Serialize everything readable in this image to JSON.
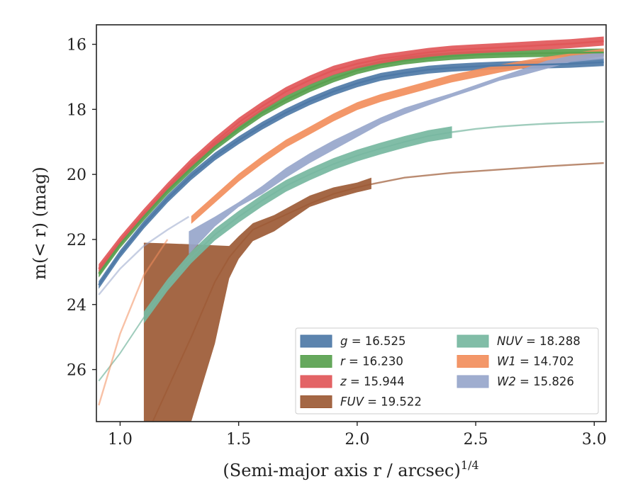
{
  "chart_data": {
    "type": "line",
    "xlabel": "(Semi-major axis r / arcsec)",
    "xlabel_sup": "1/4",
    "ylabel": "m(< r) (mag)",
    "xlim": [
      0.9,
      3.05
    ],
    "ylim": [
      27.6,
      15.4
    ],
    "y_inverted": true,
    "xticks": [
      "1.0",
      "1.5",
      "2.0",
      "2.5",
      "3.0"
    ],
    "xtick_values": [
      1.0,
      1.5,
      2.0,
      2.5,
      3.0
    ],
    "yticks": [
      "16",
      "18",
      "20",
      "22",
      "24",
      "26"
    ],
    "ytick_values": [
      16,
      18,
      20,
      22,
      24,
      26
    ],
    "grid": false,
    "legend_position": "lower right",
    "series": [
      {
        "name": "g = 16.525",
        "legend_prefix": "g",
        "legend_value": "= 16.525",
        "color": "#4e79a7",
        "x": [
          0.91,
          1.0,
          1.1,
          1.2,
          1.3,
          1.4,
          1.5,
          1.6,
          1.7,
          1.8,
          1.9,
          2.0,
          2.1,
          2.2,
          2.3,
          2.4,
          2.5,
          2.6,
          2.7,
          2.8,
          2.9,
          3.04
        ],
        "y": [
          23.4,
          22.45,
          21.55,
          20.75,
          20.05,
          19.45,
          18.95,
          18.5,
          18.1,
          17.75,
          17.45,
          17.2,
          17.0,
          16.88,
          16.78,
          16.72,
          16.68,
          16.65,
          16.63,
          16.62,
          16.6,
          16.55
        ],
        "band": 0.12,
        "faded_after": null
      },
      {
        "name": "r = 16.230",
        "legend_prefix": "r",
        "legend_value": "= 16.230",
        "color": "#59a14f",
        "x": [
          0.91,
          1.0,
          1.1,
          1.2,
          1.3,
          1.4,
          1.5,
          1.6,
          1.7,
          1.8,
          1.9,
          2.0,
          2.1,
          2.2,
          2.3,
          2.4,
          2.5,
          2.6,
          2.7,
          2.8,
          2.9,
          3.04
        ],
        "y": [
          23.05,
          22.15,
          21.3,
          20.5,
          19.8,
          19.15,
          18.6,
          18.1,
          17.7,
          17.35,
          17.05,
          16.8,
          16.62,
          16.5,
          16.42,
          16.36,
          16.32,
          16.3,
          16.28,
          16.27,
          16.26,
          16.25
        ],
        "band": 0.12,
        "faded_after": null
      },
      {
        "name": "z = 15.944",
        "legend_prefix": "z",
        "legend_value": "= 15.944",
        "color": "#e15759",
        "x": [
          0.91,
          1.0,
          1.1,
          1.2,
          1.3,
          1.4,
          1.5,
          1.6,
          1.7,
          1.8,
          1.9,
          2.0,
          2.1,
          2.2,
          2.3,
          2.4,
          2.5,
          2.6,
          2.7,
          2.8,
          2.9,
          3.04
        ],
        "y": [
          22.9,
          22.05,
          21.2,
          20.4,
          19.65,
          19.0,
          18.4,
          17.9,
          17.45,
          17.1,
          16.8,
          16.6,
          16.45,
          16.35,
          16.25,
          16.18,
          16.14,
          16.1,
          16.06,
          16.02,
          15.98,
          15.9
        ],
        "band": 0.14,
        "faded_after": null
      },
      {
        "name": "FUV = 19.522",
        "legend_prefix": "FUV",
        "legend_value": "= 19.522",
        "color": "#9c5a35",
        "x": [
          1.1,
          1.2,
          1.3,
          1.4,
          1.46,
          1.5,
          1.56,
          1.65,
          1.8,
          1.9,
          2.0,
          2.06,
          2.2,
          2.4,
          2.6,
          2.8,
          3.04
        ],
        "y": [
          28.2,
          26.6,
          25.0,
          23.3,
          22.55,
          22.2,
          21.7,
          21.4,
          20.9,
          20.6,
          20.4,
          20.3,
          20.1,
          19.95,
          19.85,
          19.75,
          19.65
        ],
        "band_upper": [
          22.1,
          22.12,
          22.15,
          22.18,
          22.2,
          21.9,
          21.5,
          21.25,
          20.65,
          20.4,
          20.25,
          20.1
        ],
        "band_lower": [
          27.6,
          27.6,
          27.6,
          25.2,
          23.2,
          22.6,
          22.05,
          21.75,
          21.0,
          20.75,
          20.55,
          20.45
        ],
        "faded_after": 2.06
      },
      {
        "name": "NUV = 18.288",
        "legend_prefix": "NUV",
        "legend_value": "= 18.288",
        "color": "#76b7a0",
        "x": [
          0.91,
          1.0,
          1.1,
          1.2,
          1.3,
          1.4,
          1.5,
          1.6,
          1.7,
          1.8,
          1.9,
          2.0,
          2.1,
          2.2,
          2.3,
          2.4,
          2.5,
          2.6,
          2.7,
          2.8,
          2.9,
          3.04
        ],
        "y": [
          26.35,
          25.5,
          24.4,
          23.4,
          22.55,
          21.85,
          21.3,
          20.8,
          20.35,
          20.0,
          19.68,
          19.42,
          19.2,
          19.0,
          18.82,
          18.7,
          18.6,
          18.53,
          18.48,
          18.44,
          18.41,
          18.38
        ],
        "band": 0.18,
        "band_start": 1.1,
        "faded_after": 2.4
      },
      {
        "name": "W1 = 14.702",
        "legend_prefix": "W1",
        "legend_value": "= 14.702",
        "color": "#f28e5c",
        "x": [
          0.91,
          1.0,
          1.1,
          1.2,
          1.3,
          1.4,
          1.5,
          1.6,
          1.7,
          1.8,
          1.9,
          2.0,
          2.1,
          2.2,
          2.3,
          2.4,
          2.5,
          2.6,
          2.7,
          2.8,
          2.9,
          3.04
        ],
        "y": [
          27.1,
          24.9,
          23.1,
          22.0,
          21.4,
          20.75,
          20.1,
          19.55,
          19.05,
          18.65,
          18.25,
          17.9,
          17.65,
          17.45,
          17.25,
          17.05,
          16.9,
          16.75,
          16.62,
          16.5,
          16.4,
          16.25
        ],
        "band": 0.12,
        "band_start": 1.29,
        "faded_before": 1.29,
        "faded_after": null
      },
      {
        "name": "W2 = 15.826",
        "legend_prefix": "W2",
        "legend_value": "= 15.826",
        "color": "#97a6cb",
        "x": [
          0.91,
          1.0,
          1.1,
          1.2,
          1.29,
          1.4,
          1.5,
          1.6,
          1.7,
          1.8,
          1.9,
          2.0,
          2.1,
          2.2,
          2.3,
          2.4,
          2.5,
          2.6,
          2.7,
          2.8,
          2.9,
          3.04
        ],
        "y": [
          23.7,
          22.9,
          22.2,
          21.7,
          21.3,
          20.85,
          20.5,
          19.95,
          19.5,
          19.1,
          18.7,
          18.35,
          18.05,
          17.8,
          17.55,
          17.3,
          17.05,
          16.85,
          16.6,
          16.45,
          16.35,
          16.1
        ],
        "band_upper": [
          21.75,
          21.3,
          20.85,
          20.35,
          19.8,
          19.35,
          18.95,
          18.6,
          18.25,
          17.95,
          17.72,
          17.5,
          17.25,
          17.0,
          16.75,
          16.5,
          16.35,
          16.25,
          15.95
        ],
        "band_lower": [
          22.45,
          21.6,
          21.0,
          20.6,
          20.1,
          19.65,
          19.25,
          18.85,
          18.45,
          18.15,
          17.88,
          17.62,
          17.38,
          17.12,
          16.95,
          16.75,
          16.55,
          16.45,
          16.25
        ],
        "band_start": 1.29,
        "faded_before": 1.29,
        "faded_after": null
      }
    ],
    "legend_order": [
      0,
      4,
      1,
      5,
      2,
      6,
      3
    ]
  }
}
